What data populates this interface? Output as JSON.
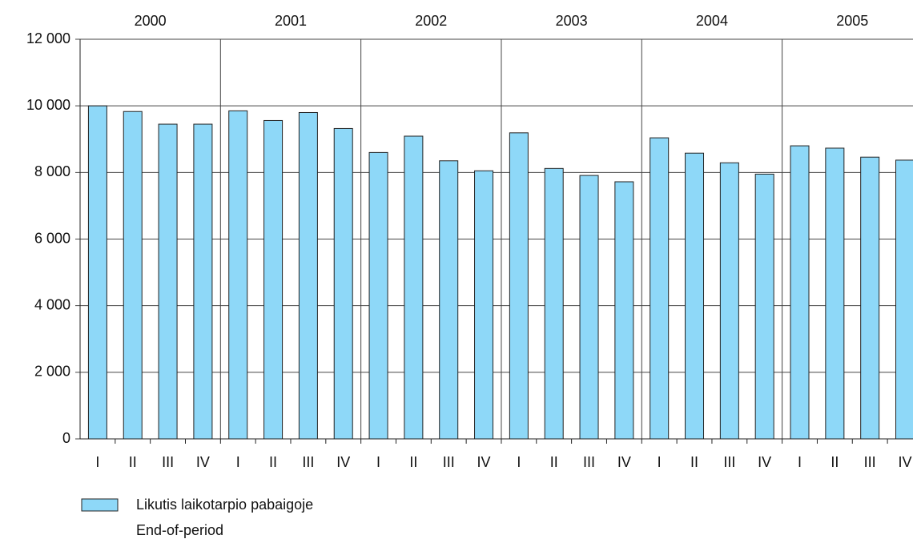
{
  "chart_data": {
    "type": "bar",
    "years": [
      "2000",
      "2001",
      "2002",
      "2003",
      "2004",
      "2005"
    ],
    "categories": [
      "I",
      "II",
      "III",
      "IV",
      "I",
      "II",
      "III",
      "IV",
      "I",
      "II",
      "III",
      "IV",
      "I",
      "II",
      "III",
      "IV",
      "I",
      "II",
      "III",
      "IV",
      "I",
      "II",
      "III",
      "IV"
    ],
    "series": [
      {
        "name": "Likutis laikotarpio pabaigoje",
        "name_en": "End-of-period",
        "color": "#8ed8f8",
        "values": [
          10000,
          9830,
          9450,
          9450,
          9850,
          9560,
          9800,
          9320,
          8600,
          9090,
          8350,
          8050,
          9190,
          8120,
          7910,
          7720,
          9040,
          8580,
          8290,
          7950,
          8800,
          8730,
          8460,
          8370
        ]
      }
    ],
    "ylim": [
      0,
      12000
    ],
    "yticks": [
      0,
      {
        "value": 2000,
        "label": "2 000"
      },
      {
        "value": 4000,
        "label": "4 000"
      },
      {
        "value": 6000,
        "label": "6 000"
      },
      {
        "value": 8000,
        "label": "8 000"
      },
      {
        "value": 10000,
        "label": "10 000"
      },
      {
        "value": 12000,
        "label": "12 000"
      }
    ],
    "grid": true
  }
}
